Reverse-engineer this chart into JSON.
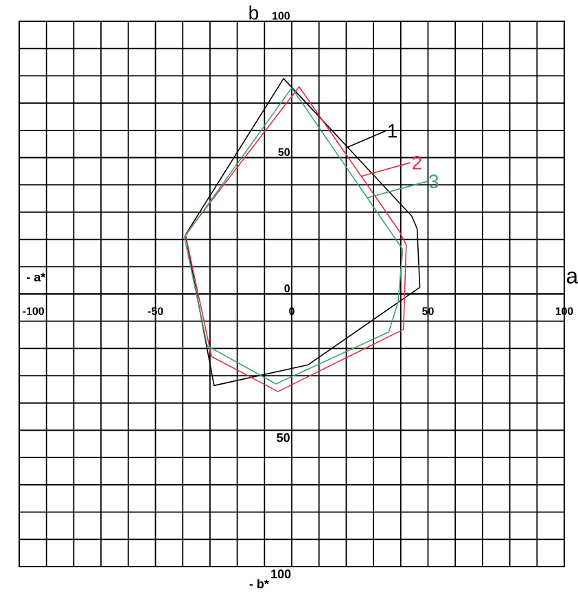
{
  "chart_data": {
    "type": "line",
    "xlabel": "a",
    "ylabel": "b",
    "annotations": [
      "- a*",
      "- b*",
      "50",
      "100"
    ],
    "xlim": [
      -100,
      100
    ],
    "ylim": [
      -100,
      100
    ],
    "xticks": [
      -100,
      {
        "value": -90,
        "label": null
      },
      {
        "value": -80,
        "label": null
      },
      {
        "value": -70,
        "label": null
      },
      {
        "value": -60,
        "label": null
      },
      -50,
      {
        "value": -40,
        "label": null
      },
      {
        "value": -30,
        "label": null
      },
      {
        "value": -20,
        "label": null
      },
      {
        "value": -10,
        "label": null
      },
      0,
      {
        "value": 10,
        "label": null
      },
      {
        "value": 20,
        "label": null
      },
      {
        "value": 30,
        "label": null
      },
      {
        "value": 40,
        "label": null
      },
      50,
      {
        "value": 60,
        "label": null
      },
      {
        "value": 70,
        "label": null
      },
      {
        "value": 80,
        "label": null
      },
      {
        "value": 90,
        "label": null
      },
      100
    ],
    "yticks": [
      {
        "value": -100,
        "label": null
      },
      {
        "value": -90,
        "label": null
      },
      {
        "value": -80,
        "label": null
      },
      {
        "value": -70,
        "label": null
      },
      {
        "value": -60,
        "label": null
      },
      {
        "value": -50,
        "label": null
      },
      {
        "value": -40,
        "label": null
      },
      {
        "value": -30,
        "label": null
      },
      {
        "value": -20,
        "label": null
      },
      {
        "value": -10,
        "label": null
      },
      0,
      {
        "value": 10,
        "label": null
      },
      {
        "value": 20,
        "label": null
      },
      {
        "value": 30,
        "label": null
      },
      {
        "value": 40,
        "label": null
      },
      50,
      {
        "value": 60,
        "label": null
      },
      {
        "value": 70,
        "label": null
      },
      {
        "value": 80,
        "label": null
      },
      {
        "value": 90,
        "label": null
      },
      100
    ],
    "grid": true,
    "legend": "right",
    "marker": "none",
    "line_style": "solid",
    "series": [
      {
        "name": "1",
        "color": "#000000",
        "x": [
          -39,
          -3,
          44,
          46,
          47
        ],
        "values": [
          21.7,
          79,
          28.6,
          24,
          2.4
        ]
      },
      {
        "color": "#000000",
        "x": [
          -39,
          -28.5,
          6,
          47
        ],
        "values": [
          21.7,
          -33.6,
          -26,
          2.4
        ]
      },
      {
        "name": "2",
        "color": "#e03040",
        "x": [
          -39,
          2.7,
          39.5,
          42
        ],
        "values": [
          21.7,
          76,
          23,
          18
        ]
      },
      {
        "color": "#e03040",
        "x": [
          -39,
          -29.4,
          -5,
          41,
          42
        ],
        "values": [
          21.7,
          -23,
          -35.8,
          -13,
          18
        ]
      },
      {
        "name": "3",
        "color": "#40a070",
        "x": [
          -39.4,
          0,
          40.7
        ],
        "values": [
          20.8,
          75.6,
          16.3
        ]
      },
      {
        "color": "#40a070",
        "x": [
          -39.4,
          -31,
          -5.8,
          35.6,
          39,
          40.7
        ],
        "values": [
          20.8,
          -19,
          -33,
          -14,
          -3,
          16.3
        ]
      }
    ]
  }
}
